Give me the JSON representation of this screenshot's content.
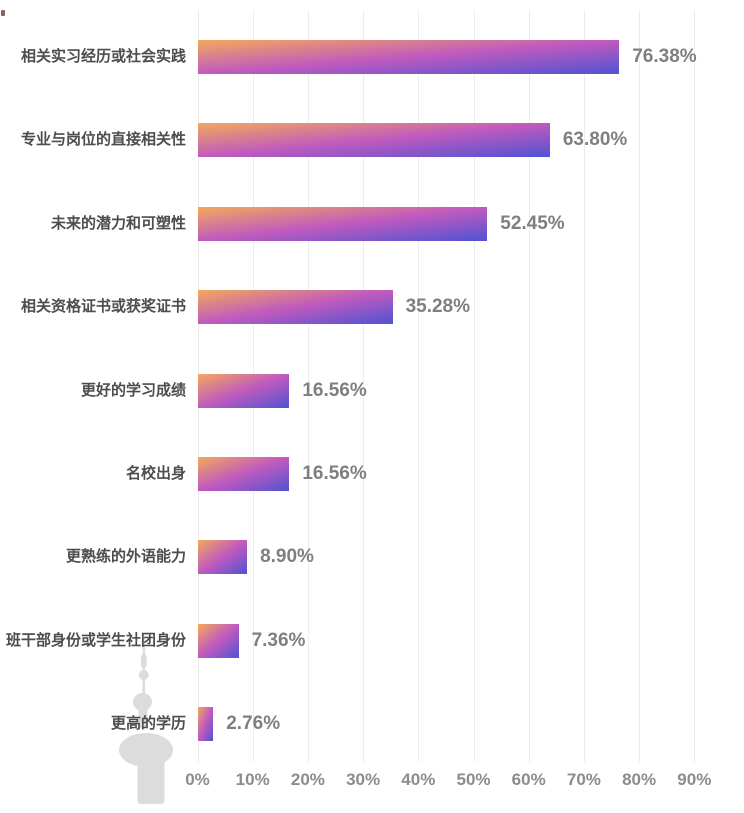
{
  "page": {
    "background": "#ffffff",
    "title": ""
  },
  "chart_data": {
    "type": "bar",
    "orientation": "horizontal",
    "title": "",
    "xlabel": "",
    "ylabel": "",
    "categories": [
      "相关实习经历或社会实践",
      "专业与岗位的直接相关性",
      "未来的潜力和可塑性",
      "相关资格证书或获奖证书",
      "更好的学习成绩",
      "名校出身",
      "更熟练的外语能力",
      "班干部身份或学生社团身份",
      "更高的学历"
    ],
    "values": [
      76.38,
      63.8,
      52.45,
      35.28,
      16.56,
      16.56,
      8.9,
      7.36,
      2.76
    ],
    "value_labels": [
      "76.38%",
      "63.80%",
      "52.45%",
      "35.28%",
      "16.56%",
      "16.56%",
      "8.90%",
      "7.36%",
      "2.76%"
    ],
    "x_ticks": {
      "labels": [
        "0%",
        "10%",
        "20%",
        "30%",
        "40%",
        "50%",
        "60%",
        "70%",
        "80%",
        "90%"
      ],
      "values": [
        0,
        10,
        20,
        30,
        40,
        50,
        60,
        70,
        80,
        90
      ]
    },
    "xlim": [
      0,
      90
    ],
    "grid": "vertical-lines",
    "legend": "none",
    "bar_gradient": {
      "direction": "to bottom right",
      "stops": [
        "#F4A95C",
        "#C05ABE",
        "#5053D2"
      ]
    },
    "colors": {
      "category_label": "#4d4d4d",
      "value_label": "#7f7f7f",
      "tick_label": "#8c8c8c",
      "gridline": "#ededed",
      "watermark": "#dcdcdc"
    }
  },
  "watermark": {
    "name": "oriental-pearl-tower-silhouette"
  }
}
